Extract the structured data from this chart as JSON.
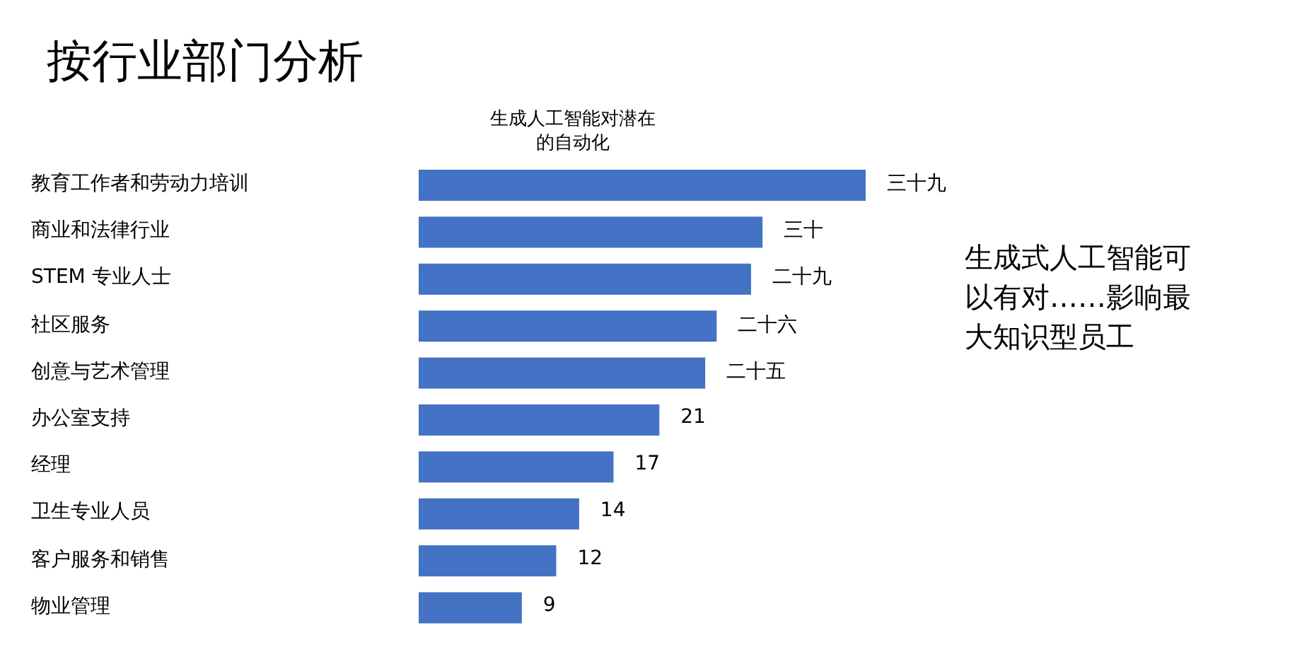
{
  "chart_data": {
    "type": "bar",
    "orientation": "horizontal",
    "title": "按行业部门分析",
    "subtitle": "生成人工智能对潜在的自动化",
    "categories": [
      "教育工作者和劳动力培训",
      "商业和法律行业",
      "STEM 专业人士",
      "社区服务",
      "创意与艺术管理",
      "办公室支持",
      "经理",
      "卫生专业人员",
      "客户服务和销售",
      "物业管理"
    ],
    "values": [
      39,
      30,
      29,
      26,
      25,
      21,
      17,
      14,
      12,
      9
    ],
    "value_labels": [
      "三十九",
      "三十",
      "二十九",
      "二十六",
      "二十五",
      "21",
      "17",
      "14",
      "12",
      "9"
    ],
    "color": "#4472c4",
    "annotations": [
      "生成式人工智能可以有对……影响最大知识型员工"
    ]
  }
}
